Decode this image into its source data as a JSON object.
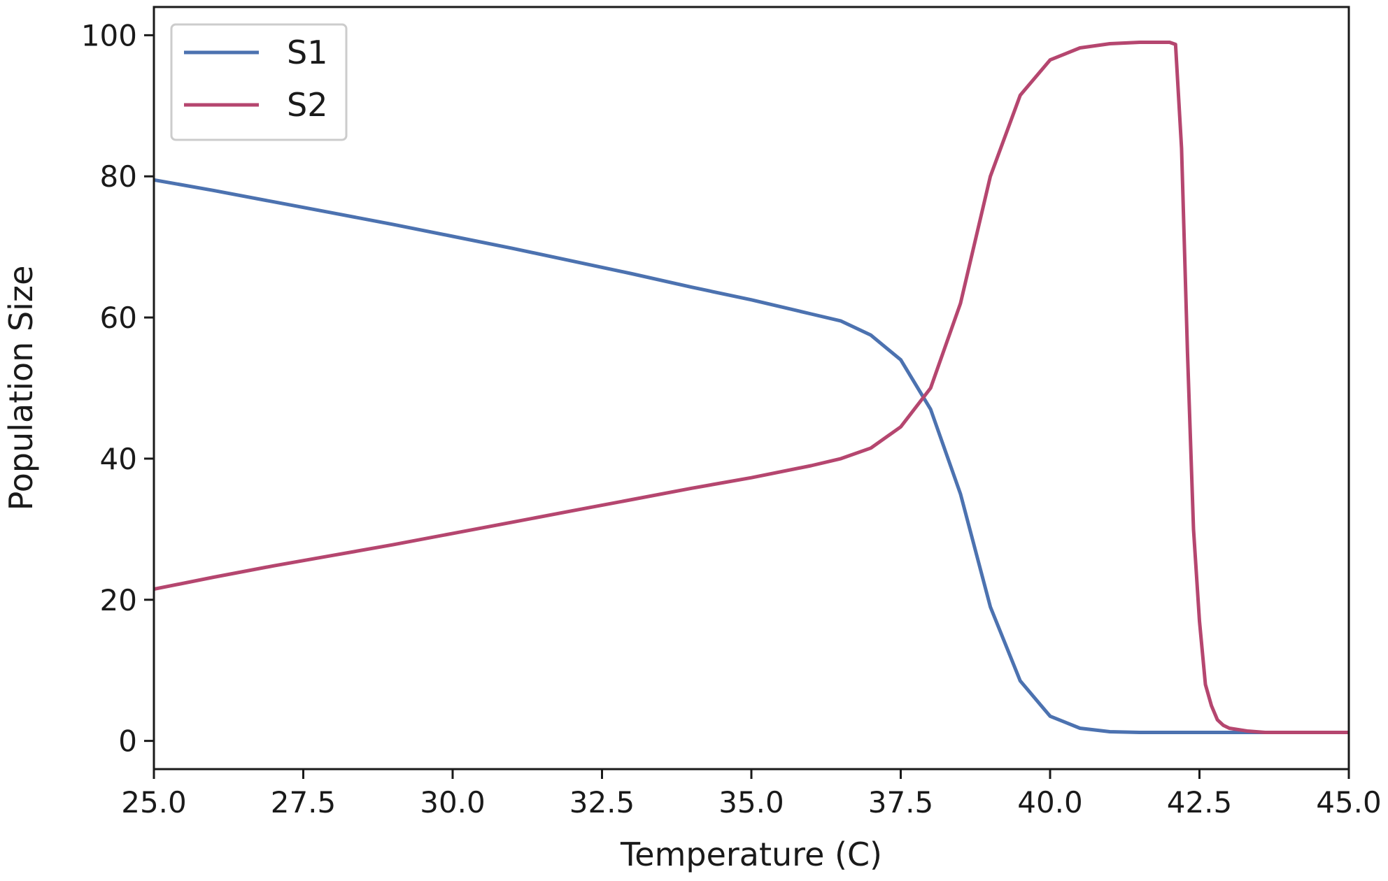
{
  "chart_data": {
    "type": "line",
    "title": "",
    "xlabel": "Temperature (C)",
    "ylabel": "Population Size",
    "xlim": [
      25.0,
      45.0
    ],
    "ylim": [
      -4,
      104
    ],
    "xticks": [
      "25.0",
      "27.5",
      "30.0",
      "32.5",
      "35.0",
      "37.5",
      "40.0",
      "42.5",
      "45.0"
    ],
    "yticks": [
      "0",
      "20",
      "40",
      "60",
      "80",
      "100"
    ],
    "grid": false,
    "legend_position": "top-left",
    "series": [
      {
        "name": "S1",
        "color": "#4c72b0",
        "x": [
          25.0,
          26.0,
          27.0,
          28.0,
          29.0,
          30.0,
          31.0,
          32.0,
          33.0,
          34.0,
          35.0,
          36.0,
          36.5,
          37.0,
          37.5,
          38.0,
          38.5,
          39.0,
          39.5,
          40.0,
          40.5,
          41.0,
          41.5,
          42.0,
          43.0,
          44.0,
          45.0
        ],
        "y": [
          79.5,
          78.0,
          76.4,
          74.8,
          73.2,
          71.5,
          69.8,
          68.0,
          66.2,
          64.3,
          62.5,
          60.5,
          59.5,
          57.5,
          54.0,
          47.0,
          35.0,
          19.0,
          8.5,
          3.5,
          1.8,
          1.3,
          1.2,
          1.2,
          1.2,
          1.2,
          1.2
        ]
      },
      {
        "name": "S2",
        "color": "#b5466f",
        "x": [
          25.0,
          26.0,
          27.0,
          28.0,
          29.0,
          30.0,
          31.0,
          32.0,
          33.0,
          34.0,
          35.0,
          36.0,
          36.5,
          37.0,
          37.5,
          38.0,
          38.5,
          39.0,
          39.5,
          40.0,
          40.5,
          41.0,
          41.5,
          42.0,
          42.1,
          42.2,
          42.3,
          42.4,
          42.5,
          42.6,
          42.7,
          42.8,
          42.9,
          43.0,
          43.3,
          43.6,
          44.0,
          45.0
        ],
        "y": [
          21.5,
          23.2,
          24.8,
          26.3,
          27.8,
          29.4,
          31.0,
          32.6,
          34.2,
          35.8,
          37.3,
          39.0,
          40.0,
          41.5,
          44.5,
          50.0,
          62.0,
          80.0,
          91.5,
          96.5,
          98.2,
          98.8,
          99.0,
          99.0,
          98.7,
          84.0,
          55.0,
          30.0,
          17.0,
          8.0,
          5.0,
          3.0,
          2.2,
          1.8,
          1.4,
          1.2,
          1.2,
          1.2
        ]
      }
    ]
  }
}
